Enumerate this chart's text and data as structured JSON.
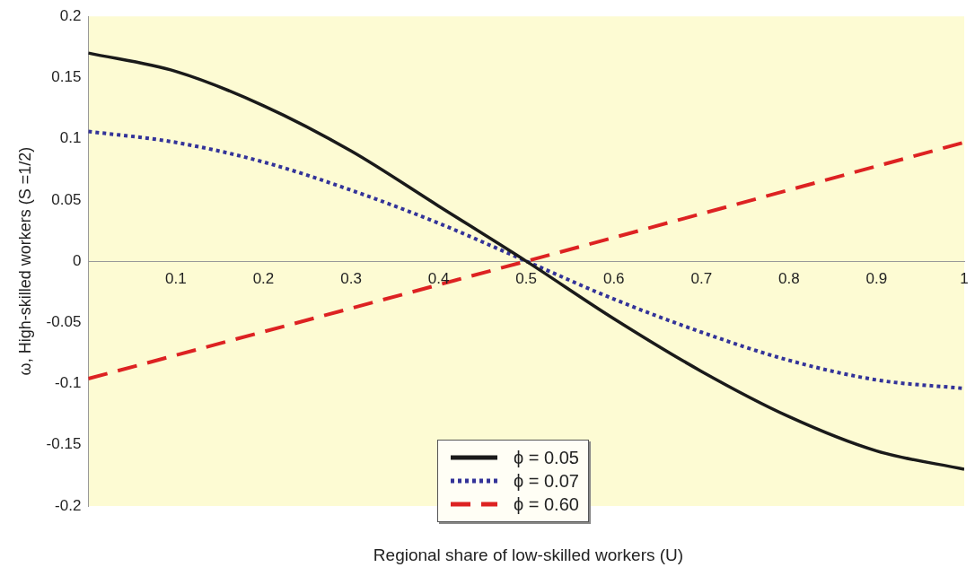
{
  "chart_data": {
    "type": "line",
    "xlabel": "Regional share of low-skilled workers (U)",
    "ylabel": "ω, High-skilled workers (S =1/2)",
    "x": [
      0,
      0.1,
      0.2,
      0.3,
      0.4,
      0.5,
      0.6,
      0.7,
      0.8,
      0.9,
      1
    ],
    "series": [
      {
        "name": "ϕ = 0.05",
        "color": "#1a1a1a",
        "line_style": "solid",
        "values": [
          0.17,
          0.155,
          0.127,
          0.09,
          0.045,
          0,
          -0.047,
          -0.09,
          -0.127,
          -0.155,
          -0.17
        ]
      },
      {
        "name": "ϕ = 0.07",
        "color": "#333399",
        "line_style": "dotted",
        "values": [
          0.106,
          0.097,
          0.081,
          0.058,
          0.031,
          0,
          -0.031,
          -0.058,
          -0.081,
          -0.097,
          -0.104
        ]
      },
      {
        "name": "ϕ = 0.60",
        "color": "#dd2222",
        "line_style": "dashed",
        "x": [
          0,
          0.5,
          1
        ],
        "values": [
          -0.096,
          0,
          0.097
        ]
      }
    ],
    "xlim": [
      0,
      1
    ],
    "xticks": [
      0.1,
      0.2,
      0.3,
      0.4,
      0.5,
      0.6,
      0.7,
      0.8,
      0.9,
      1
    ],
    "ylim": [
      -0.2,
      0.2
    ],
    "yticks": [
      -0.2,
      -0.15,
      -0.1,
      -0.05,
      0,
      0.05,
      0.1,
      0.15,
      0.2
    ],
    "grid": false,
    "legend": "bottom",
    "marker": "none"
  }
}
